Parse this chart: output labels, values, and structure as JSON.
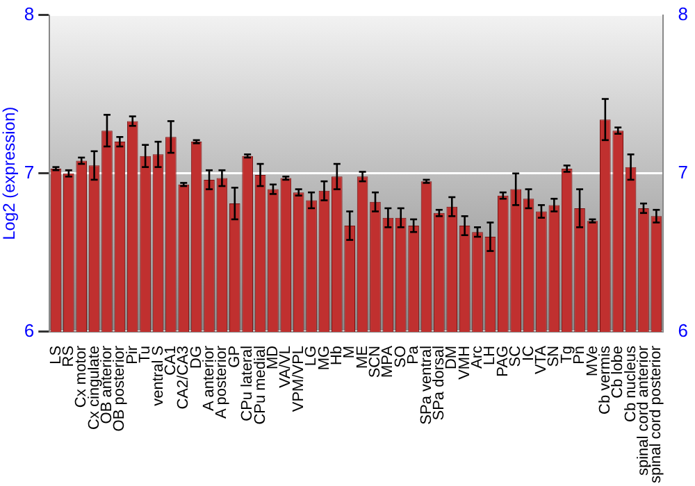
{
  "chart_data": {
    "type": "bar",
    "ylabel": "Log2 (expression)",
    "categories": [
      "LS",
      "RS",
      "Cx motor",
      "Cx cingulate",
      "OB anterior",
      "OB posterior",
      "Pir",
      "Tu",
      "ventral S",
      "CA1",
      "CA2/CA3",
      "DG",
      "A anterior",
      "A posterior",
      "GP",
      "CPu lateral",
      "CPu medial",
      "MD",
      "VA/VL",
      "VPM/VPL",
      "LG",
      "MG",
      "Hb",
      "M",
      "ME",
      "SCN",
      "MPA",
      "SO",
      "Pa",
      "SPa ventral",
      "SPa dorsal",
      "DM",
      "VMH",
      "Arc",
      "LH",
      "PAG",
      "SC",
      "IC",
      "VTA",
      "SN",
      "Tg",
      "Pn",
      "MVe",
      "Cb vermis",
      "Cb lobe",
      "Cb nucleus",
      "spinal cord anterior",
      "spinal cord posterior"
    ],
    "values": [
      7.03,
      7.0,
      7.08,
      7.05,
      7.27,
      7.2,
      7.33,
      7.11,
      7.12,
      7.23,
      6.93,
      7.2,
      6.96,
      6.97,
      6.81,
      7.11,
      6.99,
      6.9,
      6.97,
      6.88,
      6.83,
      6.89,
      6.98,
      6.67,
      6.98,
      6.82,
      6.72,
      6.72,
      6.67,
      6.95,
      6.75,
      6.79,
      6.67,
      6.63,
      6.6,
      6.86,
      6.9,
      6.84,
      6.76,
      6.8,
      7.03,
      6.78,
      6.7,
      7.34,
      7.27,
      7.04,
      6.78,
      6.73
    ],
    "errors": [
      0.01,
      0.02,
      0.02,
      0.09,
      0.1,
      0.03,
      0.03,
      0.07,
      0.08,
      0.1,
      0.01,
      0.01,
      0.06,
      0.05,
      0.1,
      0.01,
      0.07,
      0.03,
      0.01,
      0.02,
      0.05,
      0.06,
      0.08,
      0.09,
      0.03,
      0.06,
      0.06,
      0.06,
      0.04,
      0.01,
      0.02,
      0.06,
      0.06,
      0.03,
      0.09,
      0.02,
      0.1,
      0.06,
      0.04,
      0.04,
      0.02,
      0.12,
      0.01,
      0.13,
      0.02,
      0.08,
      0.03,
      0.04
    ],
    "color": "#c0302f",
    "ylim": [
      6,
      8
    ],
    "yticks": [
      6,
      7,
      8
    ],
    "y2lim": [
      6,
      8
    ],
    "y2ticks": [
      6,
      7,
      8
    ],
    "grid": "y"
  }
}
